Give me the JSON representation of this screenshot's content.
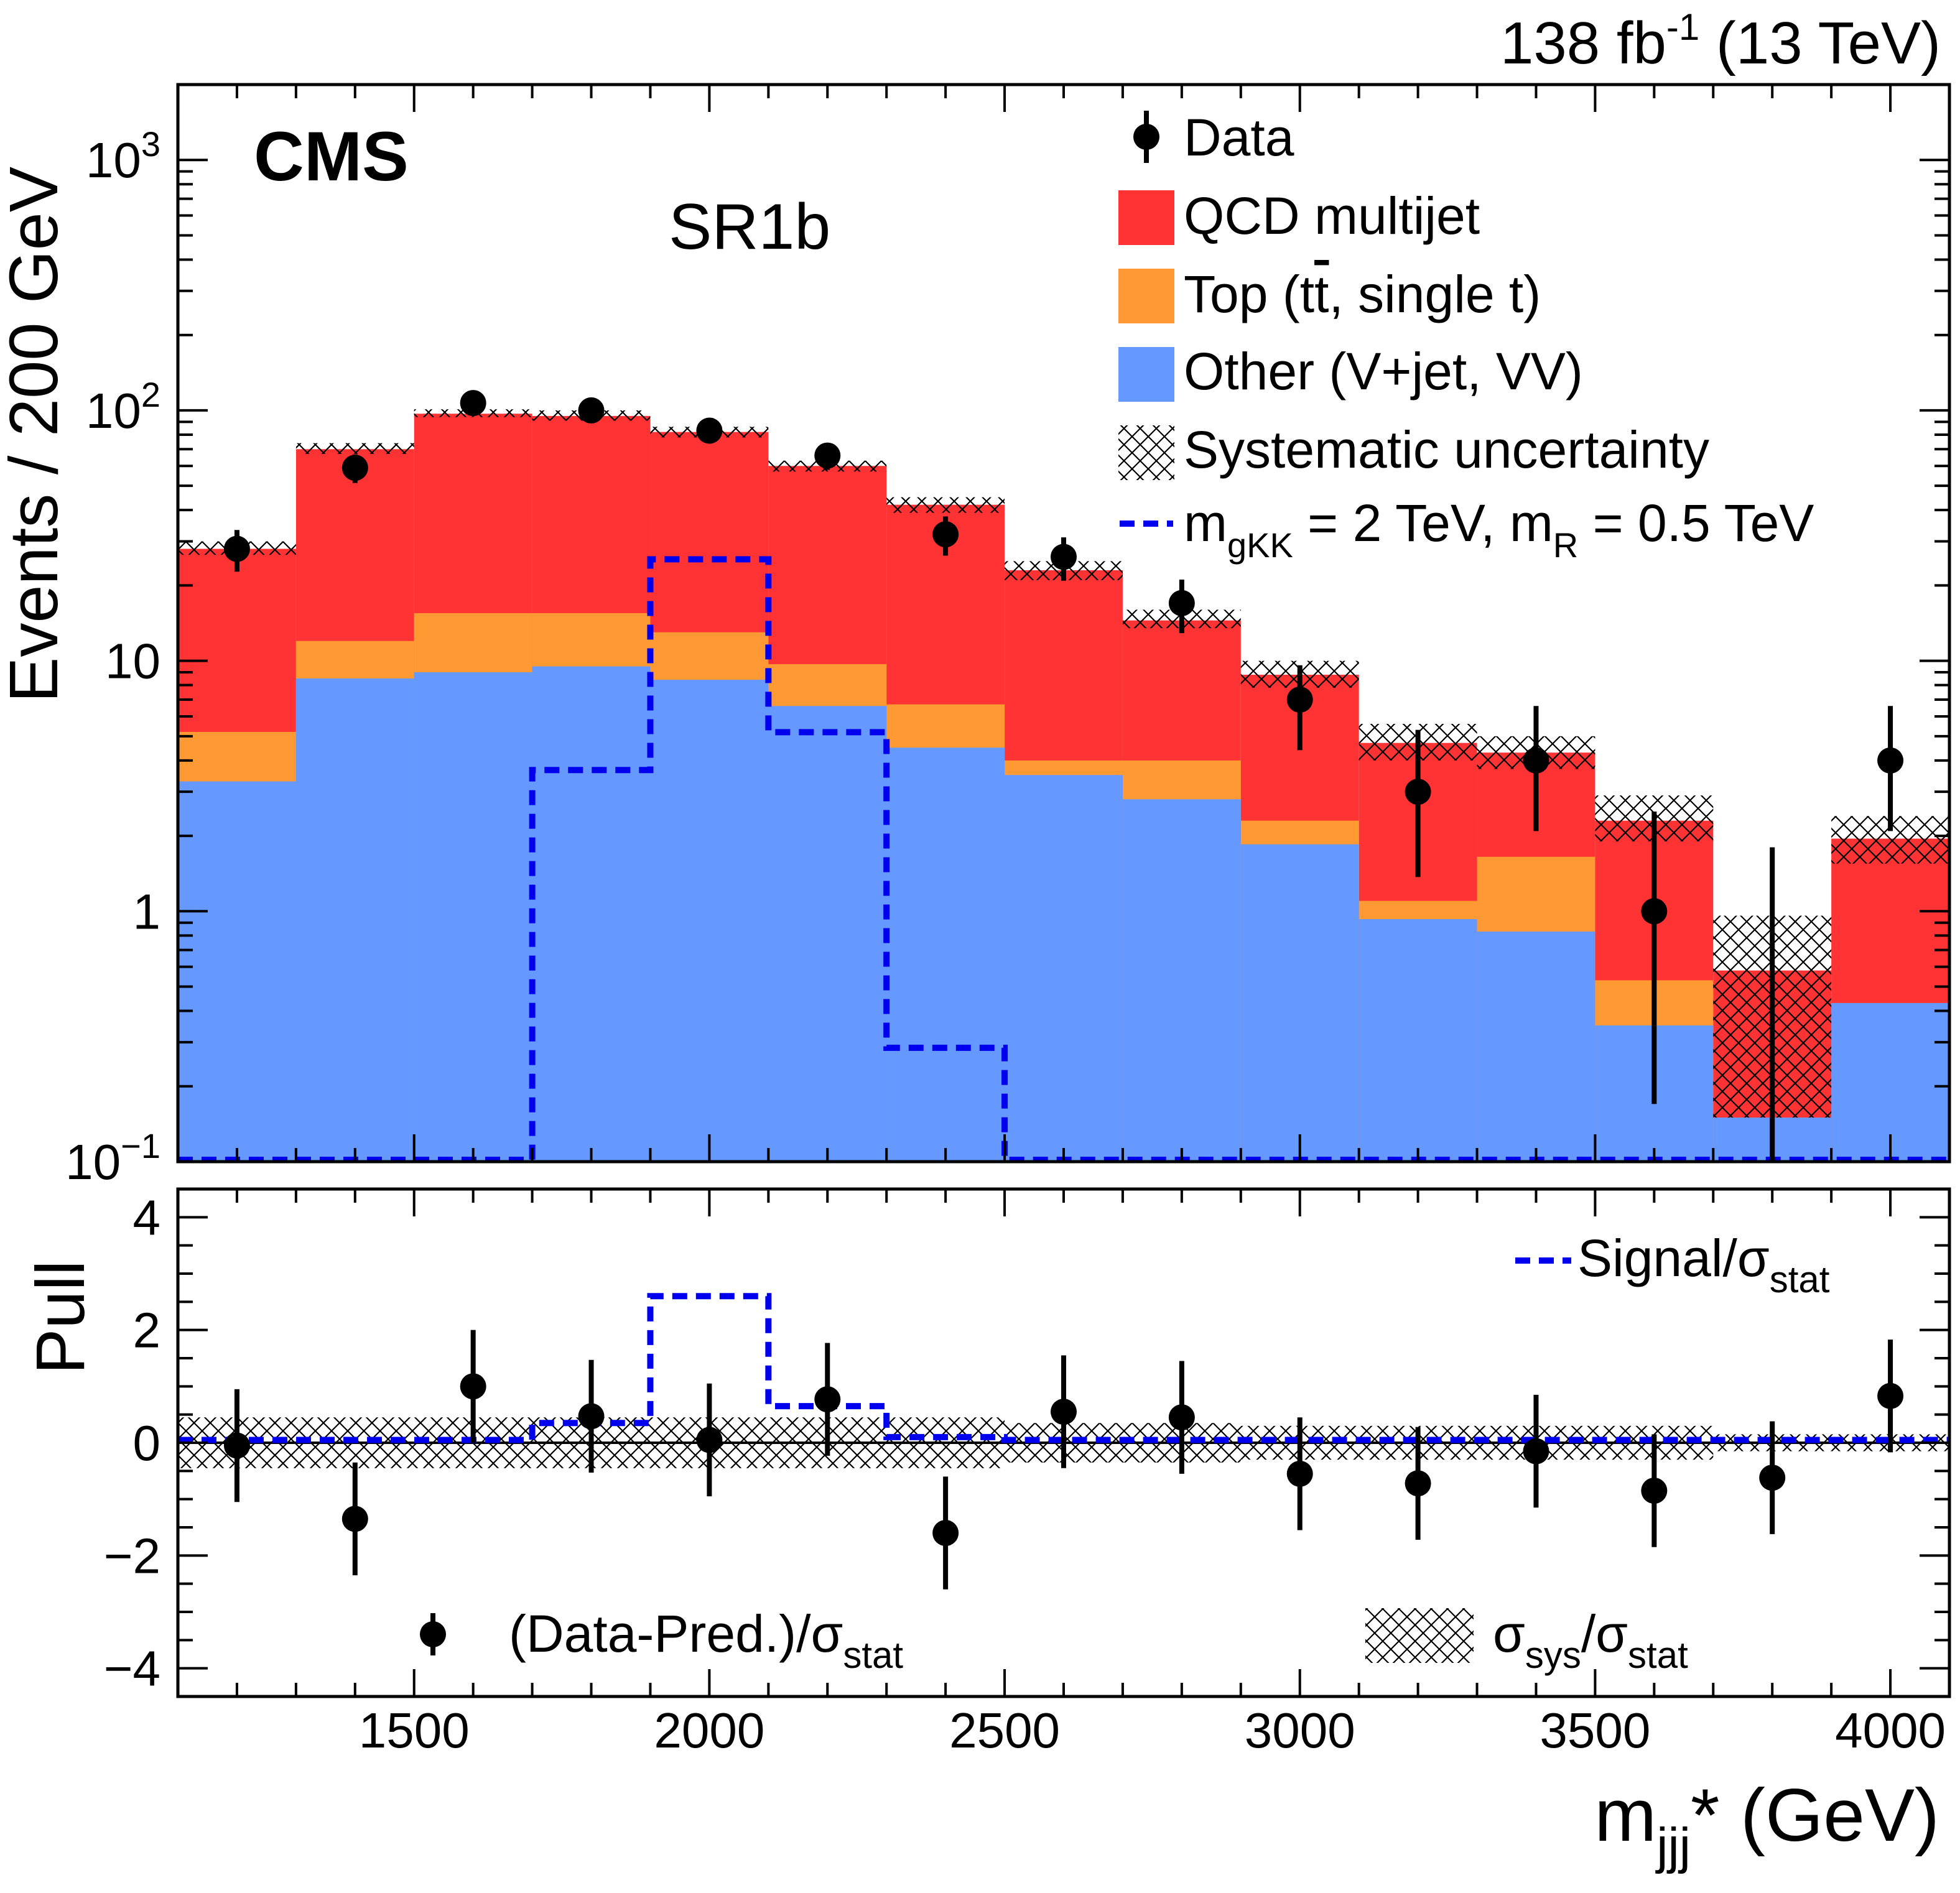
{
  "header": {
    "experiment": "CMS",
    "lumi": "138",
    "lumi_unit_base": "fb",
    "lumi_unit_exp": "-1",
    "energy": "(13 TeV)",
    "region": "SR1b"
  },
  "colors": {
    "qcd": "#ff3333",
    "top": "#ff9933",
    "other": "#6699ff",
    "signal": "#0000ee",
    "data": "#000000"
  },
  "legend": {
    "data": "Data",
    "qcd": "QCD multijet",
    "top_prefix": "Top (t",
    "top_tbar": "t",
    "top_suffix": ", single t)",
    "other": "Other (V+jet, VV)",
    "syst": "Systematic uncertainty",
    "sig_m1": "m",
    "sig_m1_sub": "gKK",
    "sig_m1_rest": " = 2 TeV, m",
    "sig_m2_sub": "R",
    "sig_m2_rest": " = 0.5 TeV"
  },
  "pull_legend": {
    "signal_base": "Signal/σ",
    "signal_sub": "stat",
    "data_base": "(Data-Pred.)/σ",
    "data_sub": "stat",
    "sys_sigma1": "σ",
    "sys_sub1": "sys",
    "sys_slash": "/σ",
    "sys_sub2": "stat"
  },
  "axes": {
    "ylabel_top": "Events / 200 GeV",
    "ylabel_bottom": "Pull",
    "xlabel_base": "m",
    "xlabel_sub": "jjj",
    "xlabel_rest": "* (GeV)"
  },
  "chart_data": [
    {
      "type": "bar",
      "stacked": true,
      "log_y": true,
      "ylim": [
        0.1,
        2000
      ],
      "xlim": [
        1100,
        4100
      ],
      "bin_width": 200,
      "bin_edges": [
        1100,
        1300,
        1500,
        1700,
        1900,
        2100,
        2300,
        2500,
        2700,
        2900,
        3100,
        3300,
        3500,
        3700,
        3900,
        4100
      ],
      "x_ticks": [
        1500,
        2000,
        2500,
        3000,
        3500,
        4000
      ],
      "y_ticks": [
        {
          "value": 0.1,
          "base": "10",
          "exp": "−1"
        },
        {
          "value": 1,
          "base": "1",
          "exp": ""
        },
        {
          "value": 10,
          "base": "10",
          "exp": ""
        },
        {
          "value": 100,
          "base": "10",
          "exp": "2"
        },
        {
          "value": 1000,
          "base": "10",
          "exp": "3"
        }
      ],
      "series": [
        {
          "name": "Other (V+jet, VV)",
          "key": "other",
          "values": [
            3.3,
            8.5,
            9.0,
            9.5,
            8.4,
            6.6,
            4.5,
            3.5,
            2.8,
            1.85,
            0.93,
            0.83,
            0.35,
            0.15,
            0.43
          ]
        },
        {
          "name": "Top (tt̄, single t)",
          "key": "top",
          "values": [
            5.2,
            12.0,
            15.5,
            15.5,
            13.0,
            9.7,
            6.7,
            4.0,
            4.0,
            2.3,
            1.1,
            1.65,
            0.53,
            0.15,
            0.43
          ]
        },
        {
          "name": "QCD multijet",
          "key": "qcd",
          "values": [
            28.0,
            70.0,
            97.0,
            95.0,
            82.0,
            60.0,
            42.0,
            23.0,
            14.5,
            8.8,
            4.7,
            4.3,
            2.3,
            0.58,
            1.95
          ]
        }
      ],
      "syst_band": {
        "low": [
          26.5,
          67,
          94,
          91,
          78,
          57,
          39,
          21,
          13.5,
          7.8,
          4.0,
          3.7,
          1.9,
          0.15,
          1.55
        ],
        "high": [
          30.0,
          74,
          101,
          100,
          86,
          63,
          45,
          25,
          16.0,
          10.0,
          5.6,
          5.0,
          2.9,
          0.96,
          2.4
        ]
      },
      "signal": {
        "name": "mgKK = 2 TeV, mR = 0.5 TeV",
        "values": [
          0.1,
          0.1,
          0.1,
          3.6,
          25.0,
          5.1,
          0.28,
          0.1,
          0.1,
          0.1,
          0.1,
          0.1,
          0.1,
          0.1,
          0.1
        ]
      },
      "data": {
        "x": [
          1200,
          1400,
          1600,
          1800,
          2000,
          2200,
          2400,
          2600,
          2800,
          3000,
          3200,
          3400,
          3600,
          3800,
          4000
        ],
        "y": [
          28,
          59,
          107,
          100,
          83,
          66,
          32,
          26,
          17,
          7,
          3,
          4,
          1,
          null,
          4
        ],
        "err_low": [
          5.3,
          7.7,
          10.3,
          10.0,
          9.1,
          8.1,
          5.7,
          5.1,
          4.1,
          2.6,
          1.63,
          1.91,
          0.83,
          null,
          1.91
        ],
        "err_high": [
          5.3,
          7.7,
          10.3,
          10.0,
          9.1,
          8.1,
          5.7,
          5.1,
          4.1,
          2.6,
          2.3,
          2.6,
          1.5,
          1.8,
          2.6
        ],
        "upper_limit_bins": [
          {
            "x": 3800,
            "high": 1.8
          }
        ]
      }
    },
    {
      "type": "scatter",
      "title": "Pull",
      "xlim": [
        1100,
        4100
      ],
      "ylim": [
        -4.5,
        4.5
      ],
      "y_ticks": [
        {
          "value": -4,
          "label": "−4"
        },
        {
          "value": -2,
          "label": "−2"
        },
        {
          "value": 0,
          "label": "0"
        },
        {
          "value": 2,
          "label": "2"
        },
        {
          "value": 4,
          "label": "4"
        }
      ],
      "pull": {
        "x": [
          1200,
          1400,
          1600,
          1800,
          2000,
          2200,
          2400,
          2600,
          2800,
          3000,
          3200,
          3400,
          3600,
          3800,
          4000
        ],
        "y": [
          -0.05,
          -1.35,
          1.0,
          0.47,
          0.05,
          0.77,
          -1.6,
          0.55,
          0.45,
          -0.55,
          -0.72,
          -0.15,
          -0.85,
          -0.62,
          0.83
        ],
        "err": [
          1,
          1,
          1,
          1,
          1,
          1,
          1,
          1,
          1,
          1,
          1,
          1,
          1,
          1,
          1
        ]
      },
      "sys_over_stat": [
        0.45,
        0.45,
        0.45,
        0.45,
        0.45,
        0.45,
        0.45,
        0.35,
        0.35,
        0.3,
        0.3,
        0.3,
        0.3,
        0.15,
        0.15
      ],
      "signal_over_stat": [
        0.05,
        0.05,
        0.05,
        0.35,
        2.6,
        0.65,
        0.1,
        0.05,
        0.05,
        0.05,
        0.05,
        0.05,
        0.05,
        0.05,
        0.05
      ]
    }
  ]
}
